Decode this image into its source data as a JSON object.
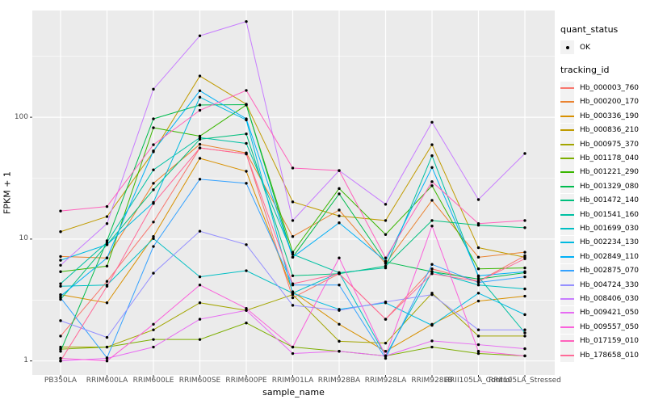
{
  "figure": {
    "background": "#ffffff",
    "panel_bg": "#ebebeb",
    "grid_color": "#ffffff",
    "tick_color": "#333333",
    "axis_text_color": "#4d4d4d",
    "point_color": "#000000"
  },
  "legend": {
    "quant_status": {
      "title": "quant_status",
      "items": [
        {
          "label": "OK",
          "marker": "black-point"
        }
      ]
    },
    "tracking_id": {
      "title": "tracking_id"
    }
  },
  "chart_data": {
    "type": "line",
    "title": "",
    "xlabel": "sample_name",
    "ylabel": "FPKM + 1",
    "yscale": "log10",
    "ylim": [
      0.95,
      650
    ],
    "y_ticks": [
      1,
      10,
      100
    ],
    "grid": "on",
    "legend_position": "right",
    "x": [
      "PB350LA",
      "RRIM600LA",
      "RRIM600LE",
      "RRIM600SE",
      "RRIM600PE",
      "RRIM901LA",
      "RRIM928BA",
      "RRIM928LA",
      "RRIM928LB",
      "RRII105LA_Control",
      "RRII105LA_Stressed"
    ],
    "series": [
      {
        "name": "Hb_000003_760",
        "color": "#F8766D",
        "values": [
          1.6,
          4.5,
          13.8,
          56,
          50,
          3.3,
          5.2,
          2.2,
          5.7,
          4.5,
          7.3
        ]
      },
      {
        "name": "Hb_000200_170",
        "color": "#EA8331",
        "values": [
          7.2,
          7.0,
          28.7,
          60,
          51,
          10.5,
          17.3,
          6.3,
          20.8,
          7.1,
          7.8
        ]
      },
      {
        "name": "Hb_000336_190",
        "color": "#D89000",
        "values": [
          3.5,
          3.0,
          10.5,
          46,
          36,
          3.7,
          2.0,
          1.2,
          2.0,
          3.1,
          3.4
        ]
      },
      {
        "name": "Hb_000836_210",
        "color": "#C09B00",
        "values": [
          11.5,
          15.3,
          52,
          218,
          128,
          20.2,
          15.5,
          14.2,
          59.5,
          8.5,
          7.1
        ]
      },
      {
        "name": "Hb_000975_370",
        "color": "#A3A500",
        "values": [
          1.3,
          1.3,
          1.8,
          3.0,
          2.6,
          3.5,
          1.45,
          1.4,
          3.6,
          1.6,
          1.6
        ]
      },
      {
        "name": "Hb_001178_040",
        "color": "#7CAE00",
        "values": [
          1.25,
          1.3,
          1.5,
          1.5,
          2.05,
          1.3,
          1.2,
          1.1,
          1.3,
          1.15,
          1.1
        ]
      },
      {
        "name": "Hb_001221_290",
        "color": "#39B600",
        "values": [
          5.4,
          6.0,
          82,
          70,
          126,
          7.8,
          26,
          10.9,
          27.4,
          5.7,
          5.8
        ]
      },
      {
        "name": "Hb_001329_080",
        "color": "#00BB4E",
        "values": [
          1.2,
          9.7,
          97,
          126,
          127,
          7.1,
          23.5,
          6.5,
          5.4,
          4.7,
          5.3
        ]
      },
      {
        "name": "Hb_001472_140",
        "color": "#00BF7D",
        "values": [
          3.2,
          9.0,
          25.4,
          66,
          73,
          5.0,
          5.2,
          6.0,
          14.2,
          13.0,
          12.4
        ]
      },
      {
        "name": "Hb_001541_160",
        "color": "#00C1A3",
        "values": [
          4.3,
          9.4,
          37,
          68,
          61,
          7.5,
          5.3,
          5.8,
          48.3,
          4.9,
          1.7
        ]
      },
      {
        "name": "Hb_001699_030",
        "color": "#00BFC4",
        "values": [
          4.1,
          4.2,
          10.1,
          4.9,
          5.5,
          3.6,
          5.3,
          1.1,
          5.4,
          4.2,
          3.9
        ]
      },
      {
        "name": "Hb_002234_130",
        "color": "#00BAE0",
        "values": [
          6.7,
          9.0,
          20,
          146,
          95,
          3.6,
          2.65,
          3.0,
          1.96,
          3.6,
          2.4
        ]
      },
      {
        "name": "Hb_002849_110",
        "color": "#00B0F6",
        "values": [
          3.4,
          7.0,
          53,
          165,
          97,
          7.1,
          13.6,
          6.6,
          38.7,
          5.0,
          5.4
        ]
      },
      {
        "name": "Hb_002875_070",
        "color": "#35A2FF",
        "values": [
          3.3,
          1.06,
          8.7,
          31,
          28.7,
          4.2,
          4.2,
          1.05,
          6.2,
          4.4,
          4.9
        ]
      },
      {
        "name": "Hb_004724_330",
        "color": "#9590FF",
        "values": [
          2.14,
          1.56,
          5.25,
          11.6,
          9.0,
          2.86,
          2.6,
          3.05,
          3.5,
          1.8,
          1.8
        ]
      },
      {
        "name": "Hb_008406_030",
        "color": "#C77CFF",
        "values": [
          6.1,
          13.4,
          170,
          466,
          610,
          14.2,
          36.5,
          19.3,
          91,
          21.1,
          50.4
        ]
      },
      {
        "name": "Hb_009421_050",
        "color": "#E76BF3",
        "values": [
          1.0,
          1.05,
          1.3,
          2.2,
          2.6,
          1.15,
          1.2,
          1.1,
          1.46,
          1.36,
          1.26
        ]
      },
      {
        "name": "Hb_009557_050",
        "color": "#FA62DB",
        "values": [
          1.05,
          1.0,
          2.0,
          4.2,
          2.7,
          1.3,
          7.0,
          1.1,
          12.8,
          1.2,
          1.1
        ]
      },
      {
        "name": "Hb_017159_010",
        "color": "#FF62BC",
        "values": [
          17,
          18.5,
          59.5,
          114,
          166,
          38.3,
          36.5,
          7.0,
          29.6,
          13.4,
          14.2
        ]
      },
      {
        "name": "Hb_178658_010",
        "color": "#FF6A98",
        "values": [
          1.0,
          4.1,
          19.6,
          56,
          50,
          4.3,
          5.2,
          2.2,
          5.2,
          4.5,
          6.9
        ]
      }
    ]
  }
}
